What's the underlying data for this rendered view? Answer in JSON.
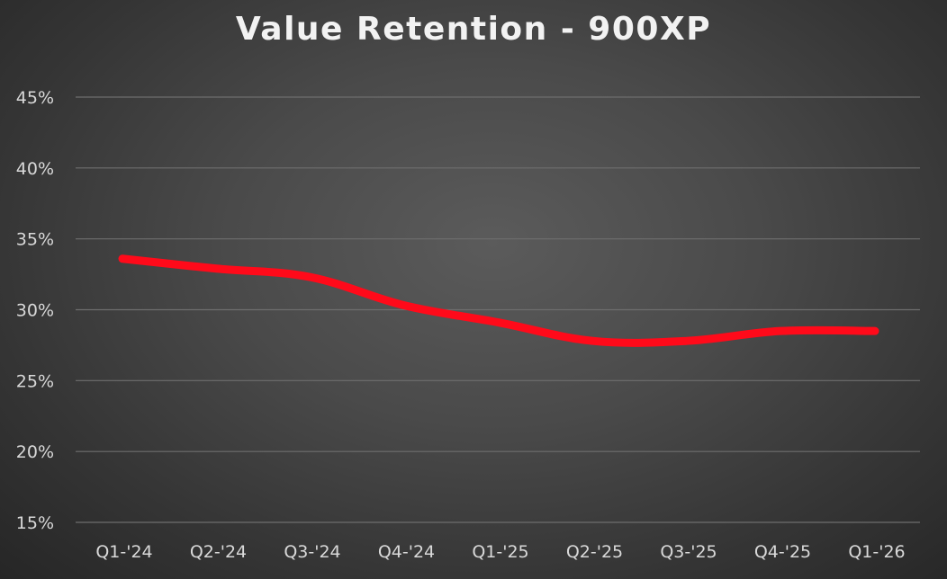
{
  "chart_data": {
    "type": "line",
    "title": "Value Retention - 900XP",
    "xlabel": "",
    "ylabel": "",
    "categories": [
      "Q1-'24",
      "Q2-'24",
      "Q3-'24",
      "Q4-'24",
      "Q1-'25",
      "Q2-'25",
      "Q3-'25",
      "Q4-'25",
      "Q1-'26"
    ],
    "series": [
      {
        "values": [
          33.6,
          32.9,
          32.3,
          30.3,
          29.1,
          27.8,
          27.8,
          28.5,
          28.5
        ],
        "color": "#ff0a1a"
      }
    ],
    "yticks": [
      "15%",
      "20%",
      "25%",
      "30%",
      "35%",
      "40%",
      "45%"
    ],
    "ytick_values": [
      15,
      20,
      25,
      30,
      35,
      40,
      45
    ],
    "ylim": [
      15,
      45
    ],
    "grid": true,
    "legend": "none"
  }
}
